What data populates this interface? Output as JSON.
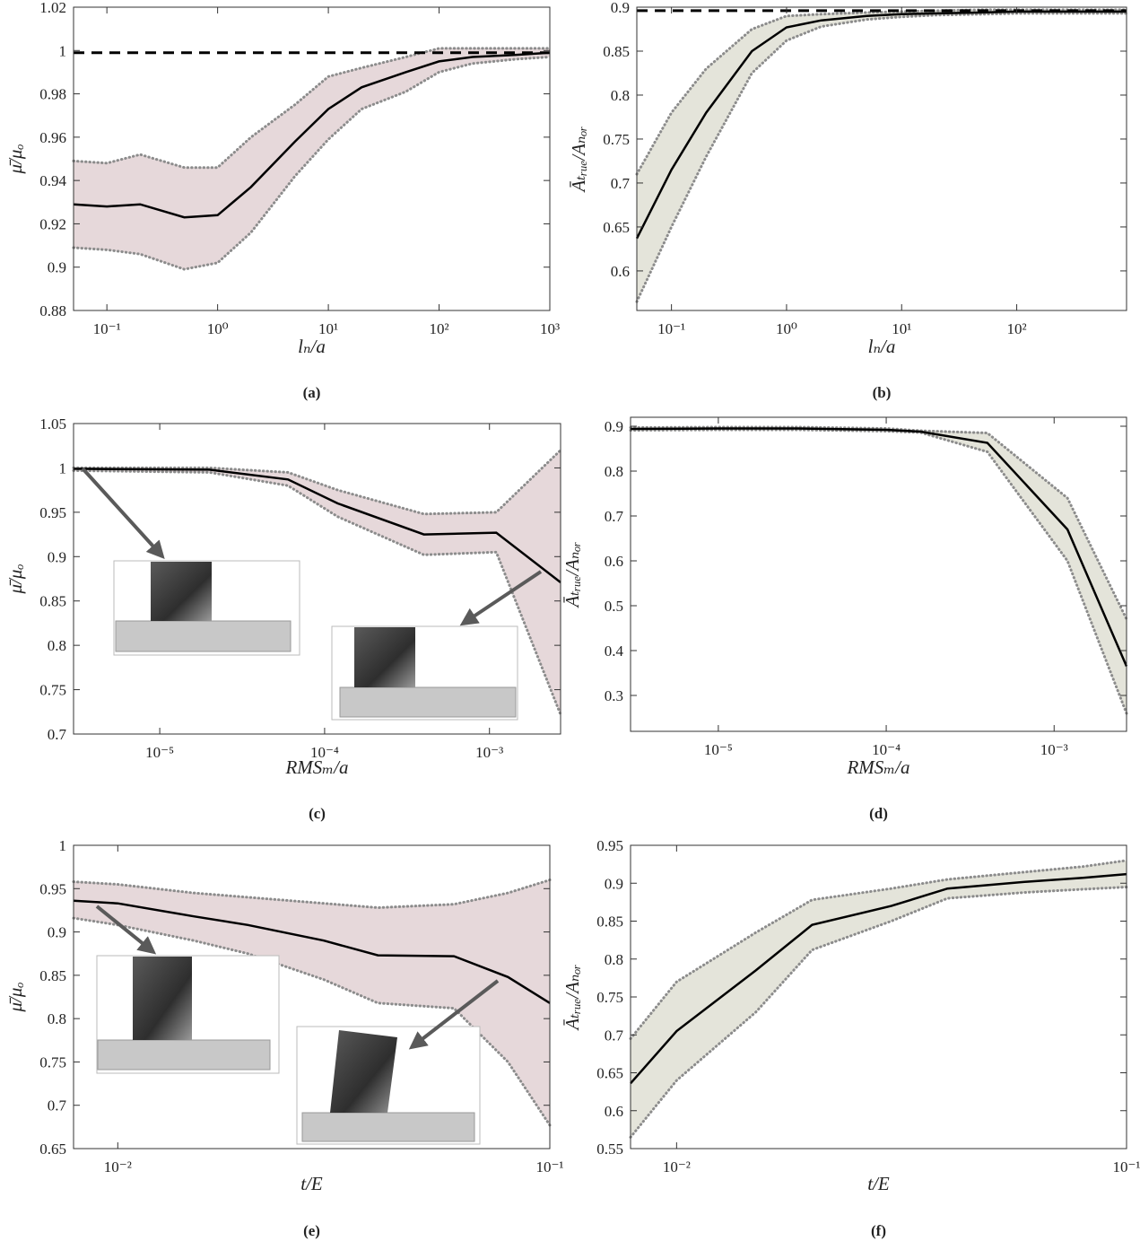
{
  "chart_data": [
    {
      "type": "line",
      "caption": "(a)",
      "xlabel": "lₙ/a",
      "ylabel": "μ̄/μₒ",
      "xscale": "log",
      "xlim": [
        0.05,
        1000
      ],
      "xticks": [
        {
          "value": 0.1,
          "label": "10⁻¹"
        },
        {
          "value": 1,
          "label": "10⁰"
        },
        {
          "value": 10,
          "label": "10¹"
        },
        {
          "value": 100,
          "label": "10²"
        },
        {
          "value": 1000,
          "label": "10³"
        }
      ],
      "ylim": [
        0.88,
        1.02
      ],
      "yticks": [
        0.88,
        0.9,
        0.92,
        0.94,
        0.96,
        0.98,
        1,
        1.02
      ],
      "x": [
        0.05,
        0.1,
        0.2,
        0.5,
        1,
        2,
        5,
        10,
        20,
        50,
        100,
        200,
        500,
        1000
      ],
      "mean": {
        "color": "#000000",
        "values": [
          0.929,
          0.928,
          0.929,
          0.923,
          0.924,
          0.937,
          0.958,
          0.973,
          0.983,
          0.99,
          0.995,
          0.997,
          0.998,
          0.999
        ]
      },
      "band": {
        "fill": "#e6d8da",
        "edge_color": "#8c8c8c",
        "upper": [
          0.949,
          0.948,
          0.952,
          0.946,
          0.946,
          0.96,
          0.975,
          0.988,
          0.992,
          0.997,
          1.001,
          1.001,
          1.001,
          1.001
        ],
        "lower": [
          0.909,
          0.908,
          0.906,
          0.899,
          0.902,
          0.916,
          0.942,
          0.959,
          0.973,
          0.981,
          0.99,
          0.994,
          0.996,
          0.997
        ]
      },
      "reference": {
        "value": 0.999,
        "color": "#000000"
      }
    },
    {
      "type": "line",
      "caption": "(b)",
      "xlabel": "lₙ/a",
      "ylabel": "Āₜᵣᵤₑ/Aₙₒᵣ",
      "xscale": "log",
      "xlim": [
        0.05,
        900
      ],
      "xticks": [
        {
          "value": 0.1,
          "label": "10⁻¹"
        },
        {
          "value": 1,
          "label": "10⁰"
        },
        {
          "value": 10,
          "label": "10¹"
        },
        {
          "value": 100,
          "label": "10²"
        }
      ],
      "ylim": [
        0.555,
        0.9
      ],
      "yticks": [
        0.6,
        0.65,
        0.7,
        0.75,
        0.8,
        0.85,
        0.9
      ],
      "x": [
        0.05,
        0.1,
        0.2,
        0.5,
        1,
        2,
        5,
        10,
        20,
        50,
        100,
        200,
        500,
        900
      ],
      "mean": {
        "color": "#000000",
        "values": [
          0.637,
          0.715,
          0.78,
          0.85,
          0.877,
          0.885,
          0.89,
          0.892,
          0.893,
          0.894,
          0.895,
          0.895,
          0.895,
          0.895
        ]
      },
      "band": {
        "fill": "#e4e4da",
        "edge_color": "#8c8c8c",
        "upper": [
          0.71,
          0.78,
          0.83,
          0.875,
          0.89,
          0.892,
          0.894,
          0.895,
          0.896,
          0.897,
          0.897,
          0.897,
          0.897,
          0.897
        ],
        "lower": [
          0.565,
          0.65,
          0.73,
          0.825,
          0.862,
          0.878,
          0.886,
          0.889,
          0.891,
          0.892,
          0.893,
          0.893,
          0.893,
          0.893
        ]
      },
      "reference": {
        "value": 0.896,
        "color": "#000000"
      }
    },
    {
      "type": "line",
      "caption": "(c)",
      "xlabel": "RMSₘ/a",
      "ylabel": "μ̄/μₒ",
      "xscale": "log",
      "xlim": [
        3e-06,
        0.0027
      ],
      "xticks": [
        {
          "value": 1e-05,
          "label": "10⁻⁵"
        },
        {
          "value": 0.0001,
          "label": "10⁻⁴"
        },
        {
          "value": 0.001,
          "label": "10⁻³"
        }
      ],
      "ylim": [
        0.7,
        1.05
      ],
      "yticks": [
        0.7,
        0.75,
        0.8,
        0.85,
        0.9,
        0.95,
        1,
        1.05
      ],
      "x": [
        3e-06,
        2e-05,
        6e-05,
        0.00012,
        0.0004,
        0.0011,
        0.0027
      ],
      "mean": {
        "color": "#000000",
        "values": [
          0.999,
          0.998,
          0.987,
          0.96,
          0.925,
          0.927,
          0.871
        ]
      },
      "band": {
        "fill": "#e6d8da",
        "edge_color": "#8c8c8c",
        "upper": [
          1.0,
          1.0,
          0.995,
          0.975,
          0.948,
          0.95,
          1.02
        ],
        "lower": [
          0.997,
          0.995,
          0.98,
          0.945,
          0.902,
          0.905,
          0.722
        ]
      }
    },
    {
      "type": "line",
      "caption": "(d)",
      "xlabel": "RMSₘ/a",
      "ylabel": "Āₜᵣᵤₑ/Aₙₒᵣ",
      "xscale": "log",
      "xlim": [
        3e-06,
        0.0027
      ],
      "xticks": [
        {
          "value": 1e-05,
          "label": "10⁻⁵"
        },
        {
          "value": 0.0001,
          "label": "10⁻⁴"
        },
        {
          "value": 0.001,
          "label": "10⁻³"
        }
      ],
      "ylim": [
        0.22,
        0.92
      ],
      "yticks": [
        0.3,
        0.4,
        0.5,
        0.6,
        0.7,
        0.8,
        0.9
      ],
      "x": [
        3e-06,
        1e-05,
        3e-05,
        0.0001,
        0.00016,
        0.0004,
        0.0012,
        0.0027
      ],
      "mean": {
        "color": "#000000",
        "values": [
          0.894,
          0.895,
          0.895,
          0.892,
          0.888,
          0.863,
          0.67,
          0.365
        ]
      },
      "band": {
        "fill": "#e4e4da",
        "edge_color": "#8c8c8c",
        "upper": [
          0.897,
          0.898,
          0.898,
          0.895,
          0.89,
          0.885,
          0.74,
          0.47
        ],
        "lower": [
          0.891,
          0.892,
          0.892,
          0.889,
          0.886,
          0.843,
          0.6,
          0.26
        ]
      }
    },
    {
      "type": "line",
      "caption": "(e)",
      "xlabel": "t/E",
      "ylabel": "μ̄/μₒ",
      "xscale": "log",
      "xlim": [
        0.0079,
        0.1
      ],
      "xticks": [
        {
          "value": 0.01,
          "label": "10⁻²"
        },
        {
          "value": 0.1,
          "label": "10⁻¹"
        }
      ],
      "ylim": [
        0.65,
        1
      ],
      "yticks": [
        0.65,
        0.7,
        0.75,
        0.8,
        0.85,
        0.9,
        0.95,
        1
      ],
      "x": [
        0.0079,
        0.01,
        0.015,
        0.02,
        0.03,
        0.04,
        0.06,
        0.08,
        0.1
      ],
      "mean": {
        "color": "#000000",
        "values": [
          0.936,
          0.933,
          0.918,
          0.908,
          0.89,
          0.873,
          0.872,
          0.848,
          0.818
        ]
      },
      "band": {
        "fill": "#e6d8da",
        "edge_color": "#8c8c8c",
        "upper": [
          0.958,
          0.955,
          0.945,
          0.94,
          0.933,
          0.928,
          0.932,
          0.945,
          0.96
        ],
        "lower": [
          0.916,
          0.908,
          0.89,
          0.875,
          0.845,
          0.818,
          0.812,
          0.75,
          0.677
        ]
      }
    },
    {
      "type": "line",
      "caption": "(f)",
      "xlabel": "t/E",
      "ylabel": "Āₜᵣᵤₑ/Aₙₒᵣ",
      "xscale": "log",
      "xlim": [
        0.0079,
        0.1
      ],
      "xticks": [
        {
          "value": 0.01,
          "label": "10⁻²"
        },
        {
          "value": 0.1,
          "label": "10⁻¹"
        }
      ],
      "ylim": [
        0.55,
        0.95
      ],
      "yticks": [
        0.55,
        0.6,
        0.65,
        0.7,
        0.75,
        0.8,
        0.85,
        0.9,
        0.95
      ],
      "x": [
        0.0079,
        0.01,
        0.015,
        0.02,
        0.03,
        0.04,
        0.06,
        0.08,
        0.1
      ],
      "mean": {
        "color": "#000000",
        "values": [
          0.636,
          0.705,
          0.785,
          0.845,
          0.87,
          0.893,
          0.902,
          0.907,
          0.912
        ]
      },
      "band": {
        "fill": "#e4e4da",
        "edge_color": "#8c8c8c",
        "upper": [
          0.695,
          0.77,
          0.835,
          0.878,
          0.893,
          0.905,
          0.915,
          0.922,
          0.93
        ],
        "lower": [
          0.565,
          0.64,
          0.73,
          0.812,
          0.85,
          0.88,
          0.888,
          0.892,
          0.895
        ]
      }
    }
  ]
}
